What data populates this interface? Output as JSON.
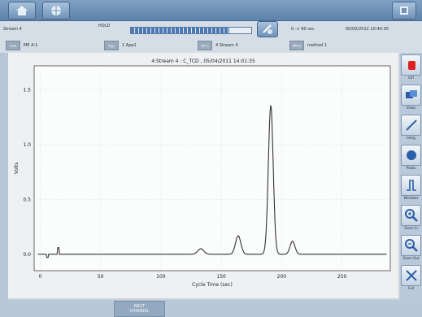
{
  "status": {
    "stream": "Stream 4",
    "mode": "HOLD",
    "progress": 0.82,
    "time_range": "0 -> 60 sec",
    "datetime": "00/00/2012 10:40:30"
  },
  "params": [
    {
      "tag": "Anlz",
      "value": "ME A-1"
    },
    {
      "tag": "App",
      "value": "1 App1"
    },
    {
      "tag": "Strm",
      "value": "4 Stream 4"
    },
    {
      "tag": "Mthd",
      "value": "method 1"
    }
  ],
  "tools": [
    {
      "label": "Ctrl",
      "icon": "stop-hand-icon"
    },
    {
      "label": "Views",
      "icon": "overlay-icon"
    },
    {
      "label": "Integ",
      "icon": "integrate-icon"
    },
    {
      "label": "Peaks",
      "icon": "peak-marker-icon"
    },
    {
      "label": "Windows",
      "icon": "window-marker-icon"
    },
    {
      "label": "Zoom In",
      "icon": "zoom-in-icon"
    },
    {
      "label": "Zoom Out",
      "icon": "zoom-out-icon"
    },
    {
      "label": "Full",
      "icon": "full-scale-icon"
    }
  ],
  "bottom": {
    "next_line1": "NEXT",
    "next_line2": "CHANNEL"
  },
  "chart_data": {
    "type": "line",
    "title": "4:Stream 4 : C_TCD , 05/04/2011 14:01:35",
    "xlabel": "Cycle Time (sec)",
    "ylabel": "Volts",
    "xlim": [
      -5,
      290
    ],
    "ylim": [
      -0.15,
      1.72
    ],
    "xticks": [
      0,
      50,
      100,
      150,
      200,
      250
    ],
    "yticks": [
      0.0,
      0.5,
      1.0,
      1.5
    ],
    "ytick_labels": [
      "0.0",
      "0.5",
      "1.0",
      "1.5"
    ],
    "grid": true,
    "series": [
      {
        "baseline": 0.0,
        "spikes": [
          {
            "x": 6,
            "y": -0.03
          },
          {
            "x": 15,
            "y": 0.06
          }
        ],
        "peaks": [
          {
            "x": 133,
            "height": 0.05,
            "width": 2.5
          },
          {
            "x": 164,
            "height": 0.17,
            "width": 2.2
          },
          {
            "x": 191,
            "height": 1.36,
            "width": 2.0
          },
          {
            "x": 209,
            "height": 0.12,
            "width": 2.0
          }
        ]
      }
    ]
  }
}
